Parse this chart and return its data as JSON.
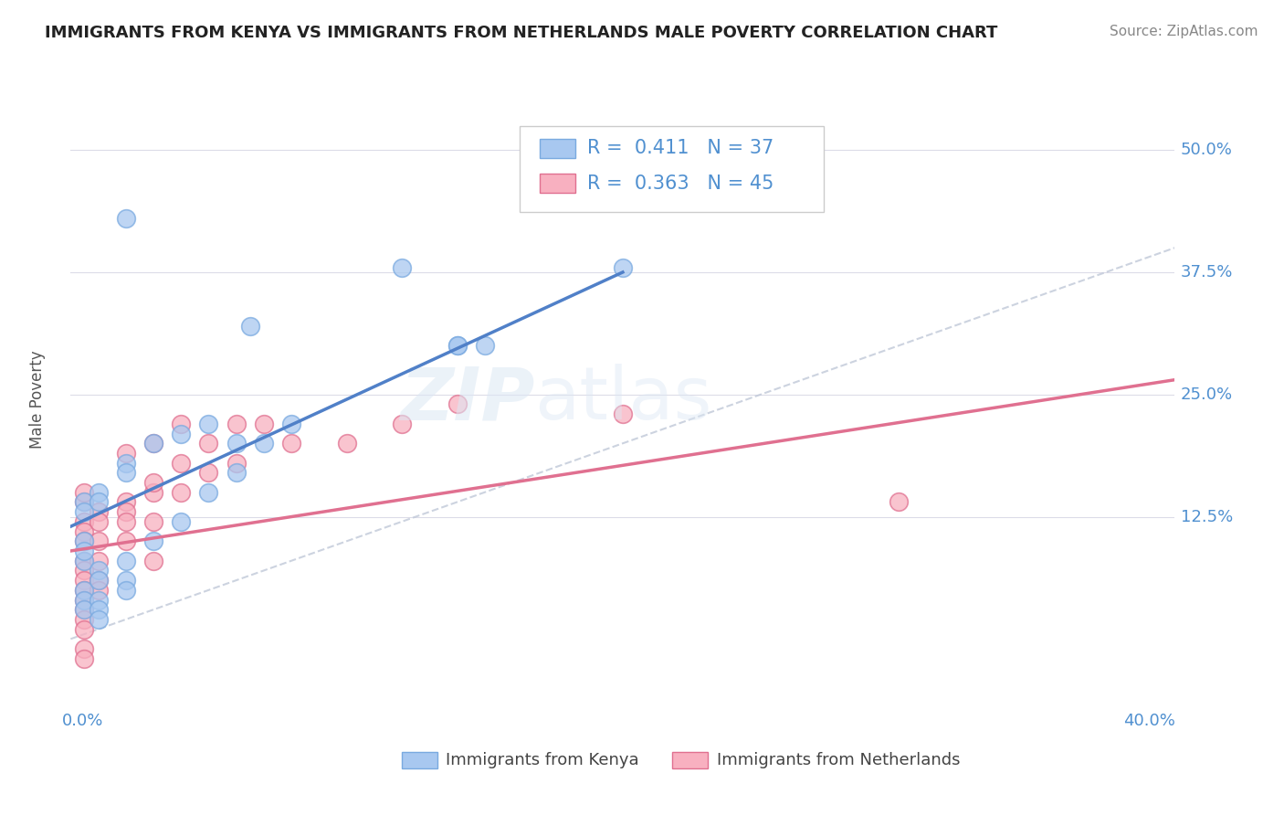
{
  "title": "IMMIGRANTS FROM KENYA VS IMMIGRANTS FROM NETHERLANDS MALE POVERTY CORRELATION CHART",
  "source": "Source: ZipAtlas.com",
  "ylabel": "Male Poverty",
  "y_tick_labels": [
    "12.5%",
    "25.0%",
    "37.5%",
    "50.0%"
  ],
  "y_tick_values": [
    0.125,
    0.25,
    0.375,
    0.5
  ],
  "xlim": [
    0.0,
    0.4
  ],
  "ylim": [
    -0.08,
    0.57
  ],
  "kenya_color": "#a8c8f0",
  "kenya_edge_color": "#7aaae0",
  "netherlands_color": "#f8b0c0",
  "netherlands_edge_color": "#e07090",
  "kenya_line_color": "#5080c8",
  "netherlands_line_color": "#e07090",
  "diag_line_color": "#c0c8d8",
  "legend_R_kenya": "R =  0.411",
  "legend_N_kenya": "N = 37",
  "legend_R_netherlands": "R =  0.363",
  "legend_N_netherlands": "N = 45",
  "kenya_label": "Immigrants from Kenya",
  "netherlands_label": "Immigrants from Netherlands",
  "kenya_scatter_x": [
    0.02,
    0.12,
    0.14,
    0.005,
    0.005,
    0.01,
    0.01,
    0.02,
    0.02,
    0.03,
    0.04,
    0.05,
    0.06,
    0.065,
    0.005,
    0.005,
    0.005,
    0.005,
    0.01,
    0.01,
    0.01,
    0.01,
    0.01,
    0.02,
    0.02,
    0.02,
    0.03,
    0.04,
    0.05,
    0.06,
    0.07,
    0.08,
    0.14,
    0.15,
    0.2,
    0.005,
    0.005
  ],
  "kenya_scatter_y": [
    0.43,
    0.38,
    0.3,
    0.14,
    0.13,
    0.15,
    0.14,
    0.18,
    0.17,
    0.2,
    0.21,
    0.22,
    0.2,
    0.32,
    0.08,
    0.05,
    0.04,
    0.03,
    0.07,
    0.06,
    0.04,
    0.03,
    0.02,
    0.08,
    0.06,
    0.05,
    0.1,
    0.12,
    0.15,
    0.17,
    0.2,
    0.22,
    0.3,
    0.3,
    0.38,
    0.1,
    0.09
  ],
  "netherlands_scatter_x": [
    0.005,
    0.005,
    0.005,
    0.005,
    0.005,
    0.005,
    0.005,
    0.005,
    0.005,
    0.01,
    0.01,
    0.01,
    0.01,
    0.01,
    0.01,
    0.02,
    0.02,
    0.02,
    0.02,
    0.03,
    0.03,
    0.03,
    0.03,
    0.04,
    0.04,
    0.05,
    0.05,
    0.06,
    0.06,
    0.07,
    0.08,
    0.1,
    0.12,
    0.14,
    0.2,
    0.3,
    0.005,
    0.005,
    0.005,
    0.005,
    0.02,
    0.03,
    0.04,
    0.005,
    0.005
  ],
  "netherlands_scatter_y": [
    0.12,
    0.11,
    0.1,
    0.08,
    0.07,
    0.06,
    0.05,
    0.04,
    0.03,
    0.13,
    0.12,
    0.1,
    0.08,
    0.06,
    0.05,
    0.14,
    0.13,
    0.12,
    0.1,
    0.15,
    0.16,
    0.12,
    0.08,
    0.18,
    0.15,
    0.2,
    0.17,
    0.22,
    0.18,
    0.22,
    0.2,
    0.2,
    0.22,
    0.24,
    0.23,
    0.14,
    0.02,
    0.01,
    -0.01,
    -0.02,
    0.19,
    0.2,
    0.22,
    0.14,
    0.15
  ],
  "watermark_text": "ZIPatlas",
  "background_color": "#ffffff",
  "grid_color": "#dcdce8",
  "kenya_line_x": [
    0.0,
    0.2
  ],
  "kenya_line_y": [
    0.115,
    0.375
  ],
  "netherlands_line_x": [
    0.0,
    0.4
  ],
  "netherlands_line_y": [
    0.09,
    0.265
  ]
}
